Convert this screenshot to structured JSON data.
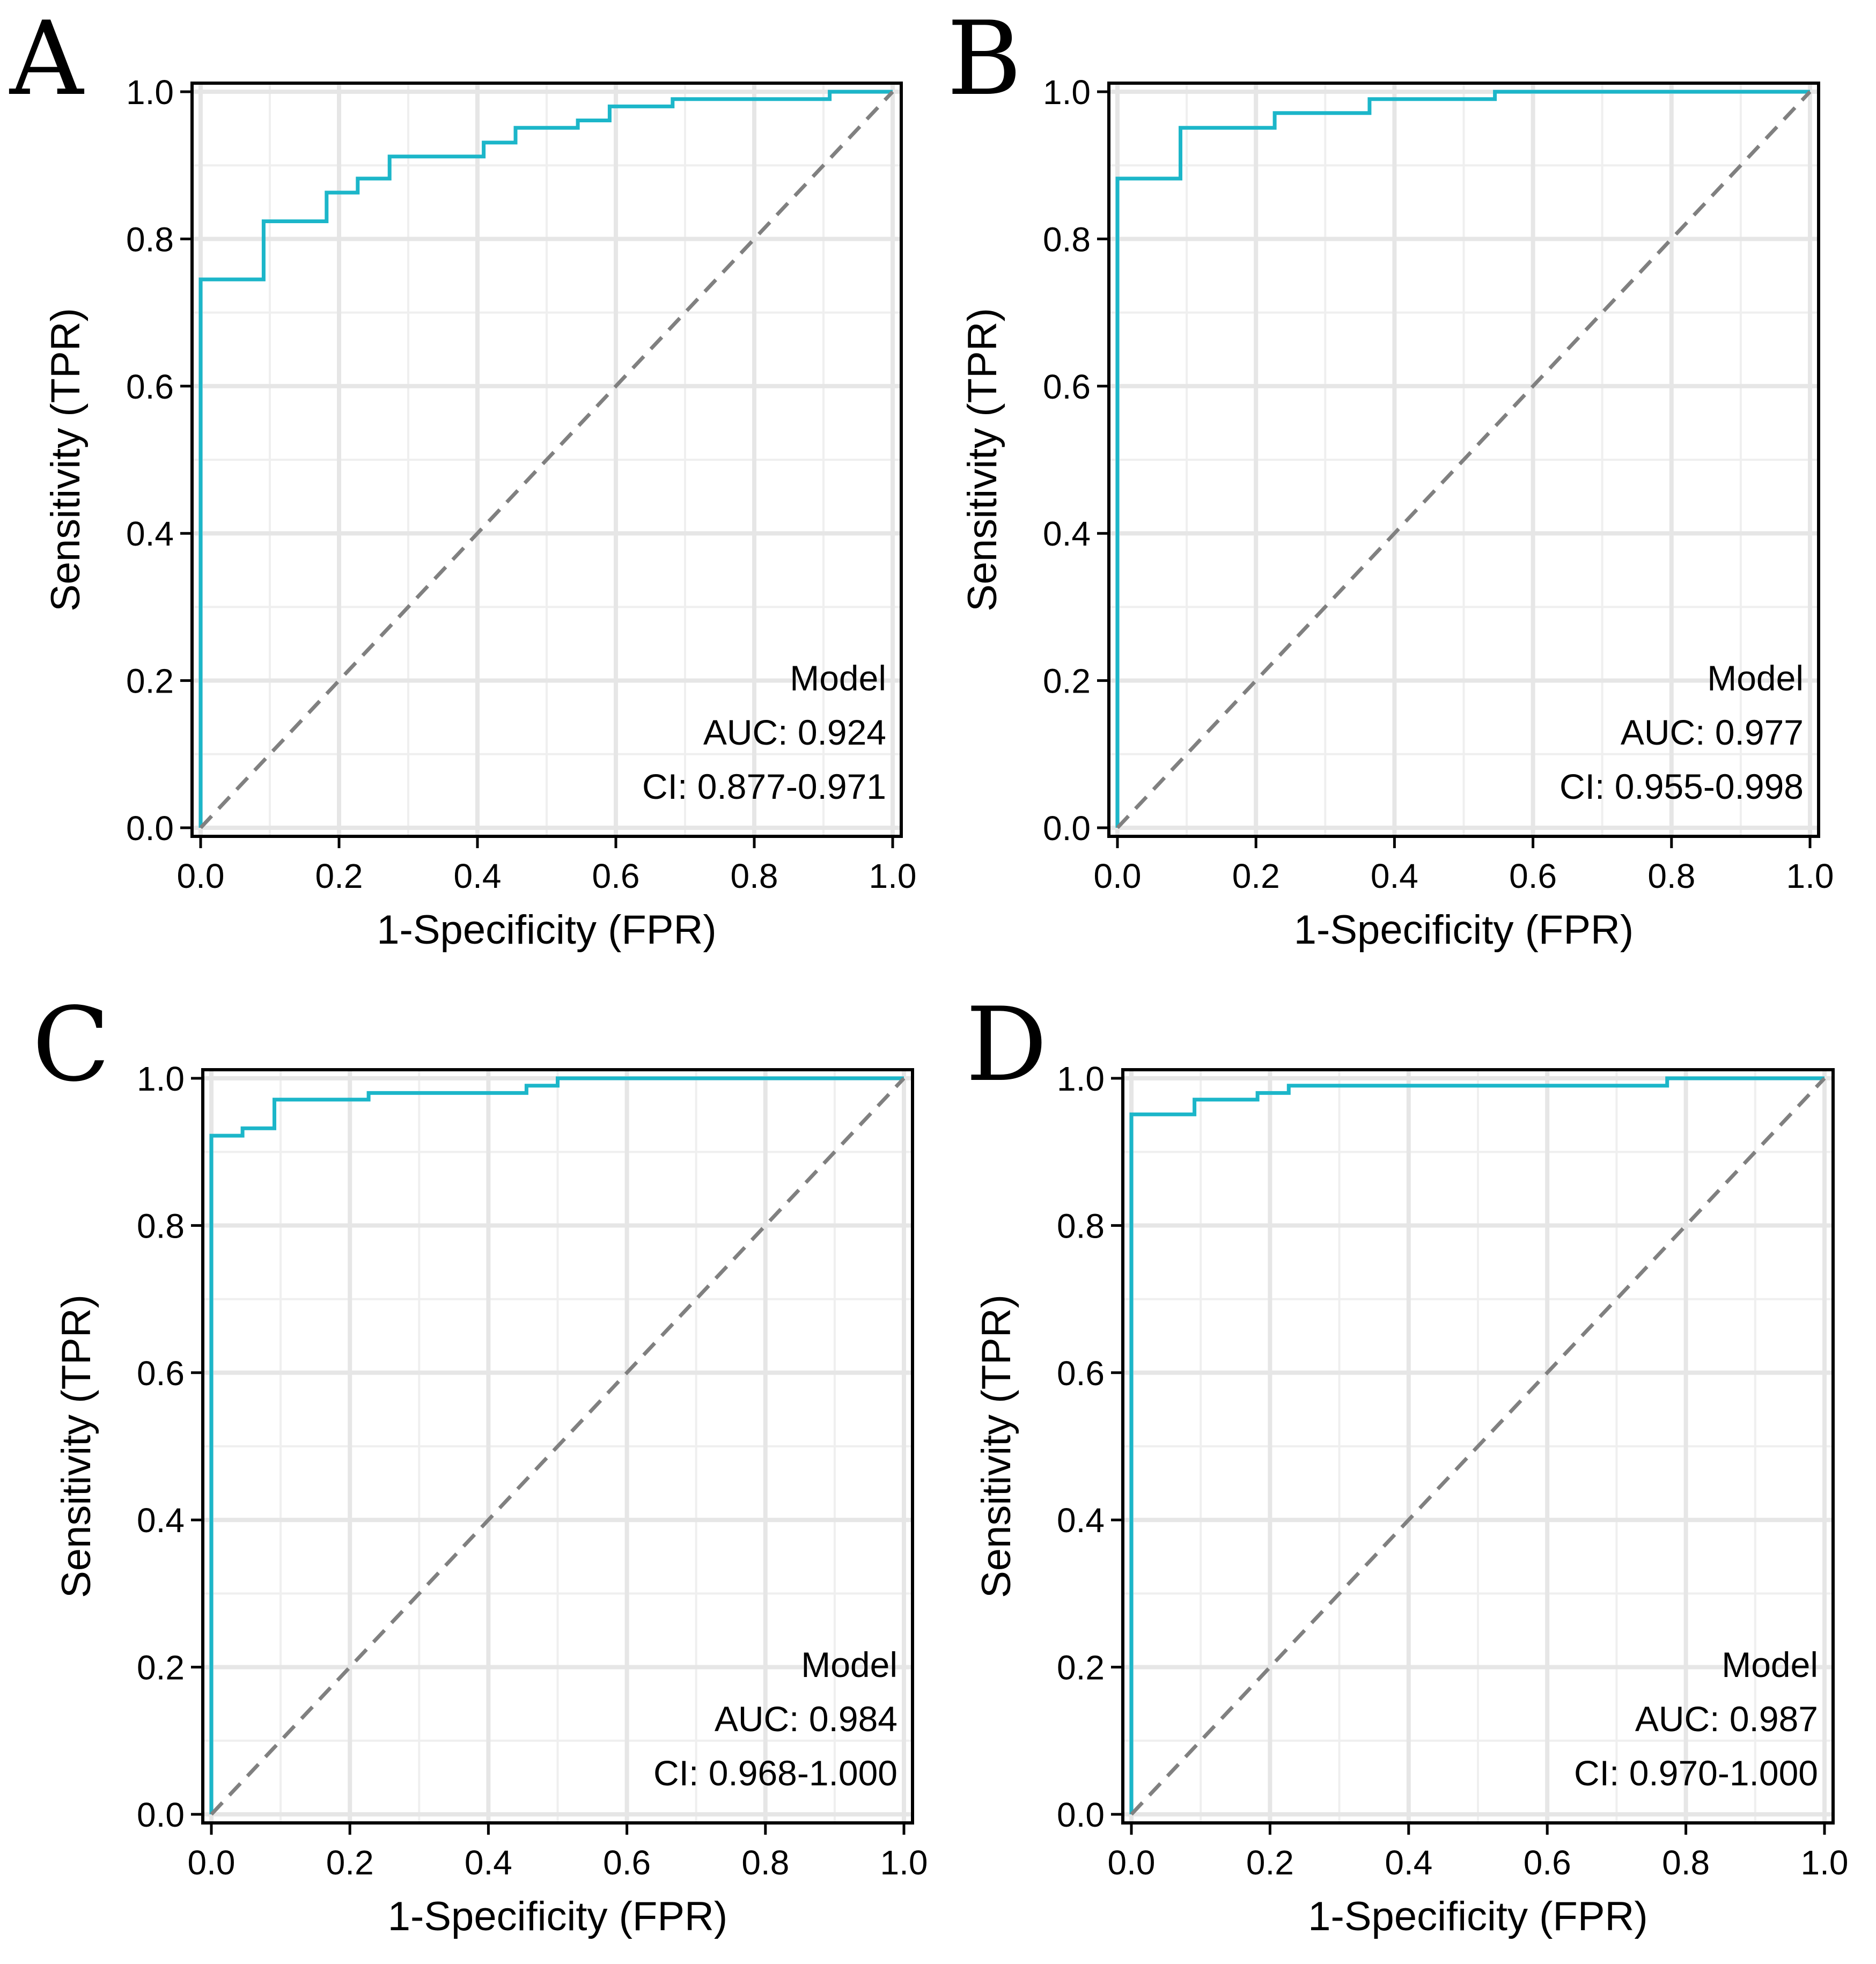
{
  "figure": {
    "style": {
      "roc_color": "#1CB6C9",
      "diagonal_color": "#808080",
      "grid_major_color": "#E6E6E6",
      "grid_minor_color": "#EFEFEF",
      "frame_color": "#000000",
      "background": "#FFFFFF"
    }
  },
  "chart_data": [
    {
      "panel": "A",
      "type": "line",
      "title": "",
      "xlabel": "1-Specificity (FPR)",
      "ylabel": "Sensitivity (TPR)",
      "xlim": [
        0,
        1
      ],
      "ylim": [
        0,
        1
      ],
      "xticks": [
        "0.0",
        "0.2",
        "0.4",
        "0.6",
        "0.8",
        "1.0"
      ],
      "yticks": [
        "0.0",
        "0.2",
        "0.4",
        "0.6",
        "0.8",
        "1.0"
      ],
      "grid": true,
      "legend_position": "bottom-right",
      "annotation": [
        "Model",
        "AUC: 0.924",
        "CI: 0.877-0.971"
      ],
      "series": [
        {
          "name": "Model",
          "kind": "step",
          "x": [
            0,
            0,
            0.091,
            0.091,
            0.182,
            0.182,
            0.227,
            0.227,
            0.273,
            0.273,
            0.409,
            0.409,
            0.455,
            0.455,
            0.545,
            0.545,
            0.591,
            0.591,
            0.682,
            0.682,
            0.909,
            0.909,
            1.0
          ],
          "y": [
            0,
            0.745,
            0.745,
            0.824,
            0.824,
            0.863,
            0.863,
            0.882,
            0.882,
            0.912,
            0.912,
            0.931,
            0.931,
            0.951,
            0.951,
            0.961,
            0.961,
            0.98,
            0.98,
            0.99,
            0.99,
            1.0,
            1.0
          ]
        },
        {
          "name": "Reference",
          "kind": "diagonal",
          "x": [
            0,
            1
          ],
          "y": [
            0,
            1
          ]
        }
      ]
    },
    {
      "panel": "B",
      "type": "line",
      "title": "",
      "xlabel": "1-Specificity (FPR)",
      "ylabel": "Sensitivity (TPR)",
      "xlim": [
        0,
        1
      ],
      "ylim": [
        0,
        1
      ],
      "xticks": [
        "0.0",
        "0.2",
        "0.4",
        "0.6",
        "0.8",
        "1.0"
      ],
      "yticks": [
        "0.0",
        "0.2",
        "0.4",
        "0.6",
        "0.8",
        "1.0"
      ],
      "grid": true,
      "legend_position": "bottom-right",
      "annotation": [
        "Model",
        "AUC: 0.977",
        "CI: 0.955-0.998"
      ],
      "series": [
        {
          "name": "Model",
          "kind": "step",
          "x": [
            0,
            0,
            0.091,
            0.091,
            0.227,
            0.227,
            0.364,
            0.364,
            0.545,
            0.545,
            1.0
          ],
          "y": [
            0,
            0.882,
            0.882,
            0.951,
            0.951,
            0.971,
            0.971,
            0.99,
            0.99,
            1.0,
            1.0
          ]
        },
        {
          "name": "Reference",
          "kind": "diagonal",
          "x": [
            0,
            1
          ],
          "y": [
            0,
            1
          ]
        }
      ]
    },
    {
      "panel": "C",
      "type": "line",
      "title": "",
      "xlabel": "1-Specificity (FPR)",
      "ylabel": "Sensitivity (TPR)",
      "xlim": [
        0,
        1
      ],
      "ylim": [
        0,
        1
      ],
      "xticks": [
        "0.0",
        "0.2",
        "0.4",
        "0.6",
        "0.8",
        "1.0"
      ],
      "yticks": [
        "0.0",
        "0.2",
        "0.4",
        "0.6",
        "0.8",
        "1.0"
      ],
      "grid": true,
      "legend_position": "bottom-right",
      "annotation": [
        "Model",
        "AUC: 0.984",
        "CI: 0.968-1.000"
      ],
      "series": [
        {
          "name": "Model",
          "kind": "step",
          "x": [
            0,
            0,
            0.045,
            0.045,
            0.091,
            0.091,
            0.227,
            0.227,
            0.455,
            0.455,
            0.5,
            0.5,
            1.0
          ],
          "y": [
            0,
            0.922,
            0.922,
            0.932,
            0.932,
            0.971,
            0.971,
            0.98,
            0.98,
            0.99,
            0.99,
            1.0,
            1.0
          ]
        },
        {
          "name": "Reference",
          "kind": "diagonal",
          "x": [
            0,
            1
          ],
          "y": [
            0,
            1
          ]
        }
      ]
    },
    {
      "panel": "D",
      "type": "line",
      "title": "",
      "xlabel": "1-Specificity (FPR)",
      "ylabel": "Sensitivity (TPR)",
      "xlim": [
        0,
        1
      ],
      "ylim": [
        0,
        1
      ],
      "xticks": [
        "0.0",
        "0.2",
        "0.4",
        "0.6",
        "0.8",
        "1.0"
      ],
      "yticks": [
        "0.0",
        "0.2",
        "0.4",
        "0.6",
        "0.8",
        "1.0"
      ],
      "grid": true,
      "legend_position": "bottom-right",
      "annotation": [
        "Model",
        "AUC: 0.987",
        "CI: 0.970-1.000"
      ],
      "series": [
        {
          "name": "Model",
          "kind": "step",
          "x": [
            0,
            0,
            0.091,
            0.091,
            0.182,
            0.182,
            0.227,
            0.227,
            0.773,
            0.773,
            1.0
          ],
          "y": [
            0,
            0.951,
            0.951,
            0.971,
            0.971,
            0.98,
            0.98,
            0.99,
            0.99,
            1.0,
            1.0
          ]
        },
        {
          "name": "Reference",
          "kind": "diagonal",
          "x": [
            0,
            1
          ],
          "y": [
            0,
            1
          ]
        }
      ]
    }
  ]
}
